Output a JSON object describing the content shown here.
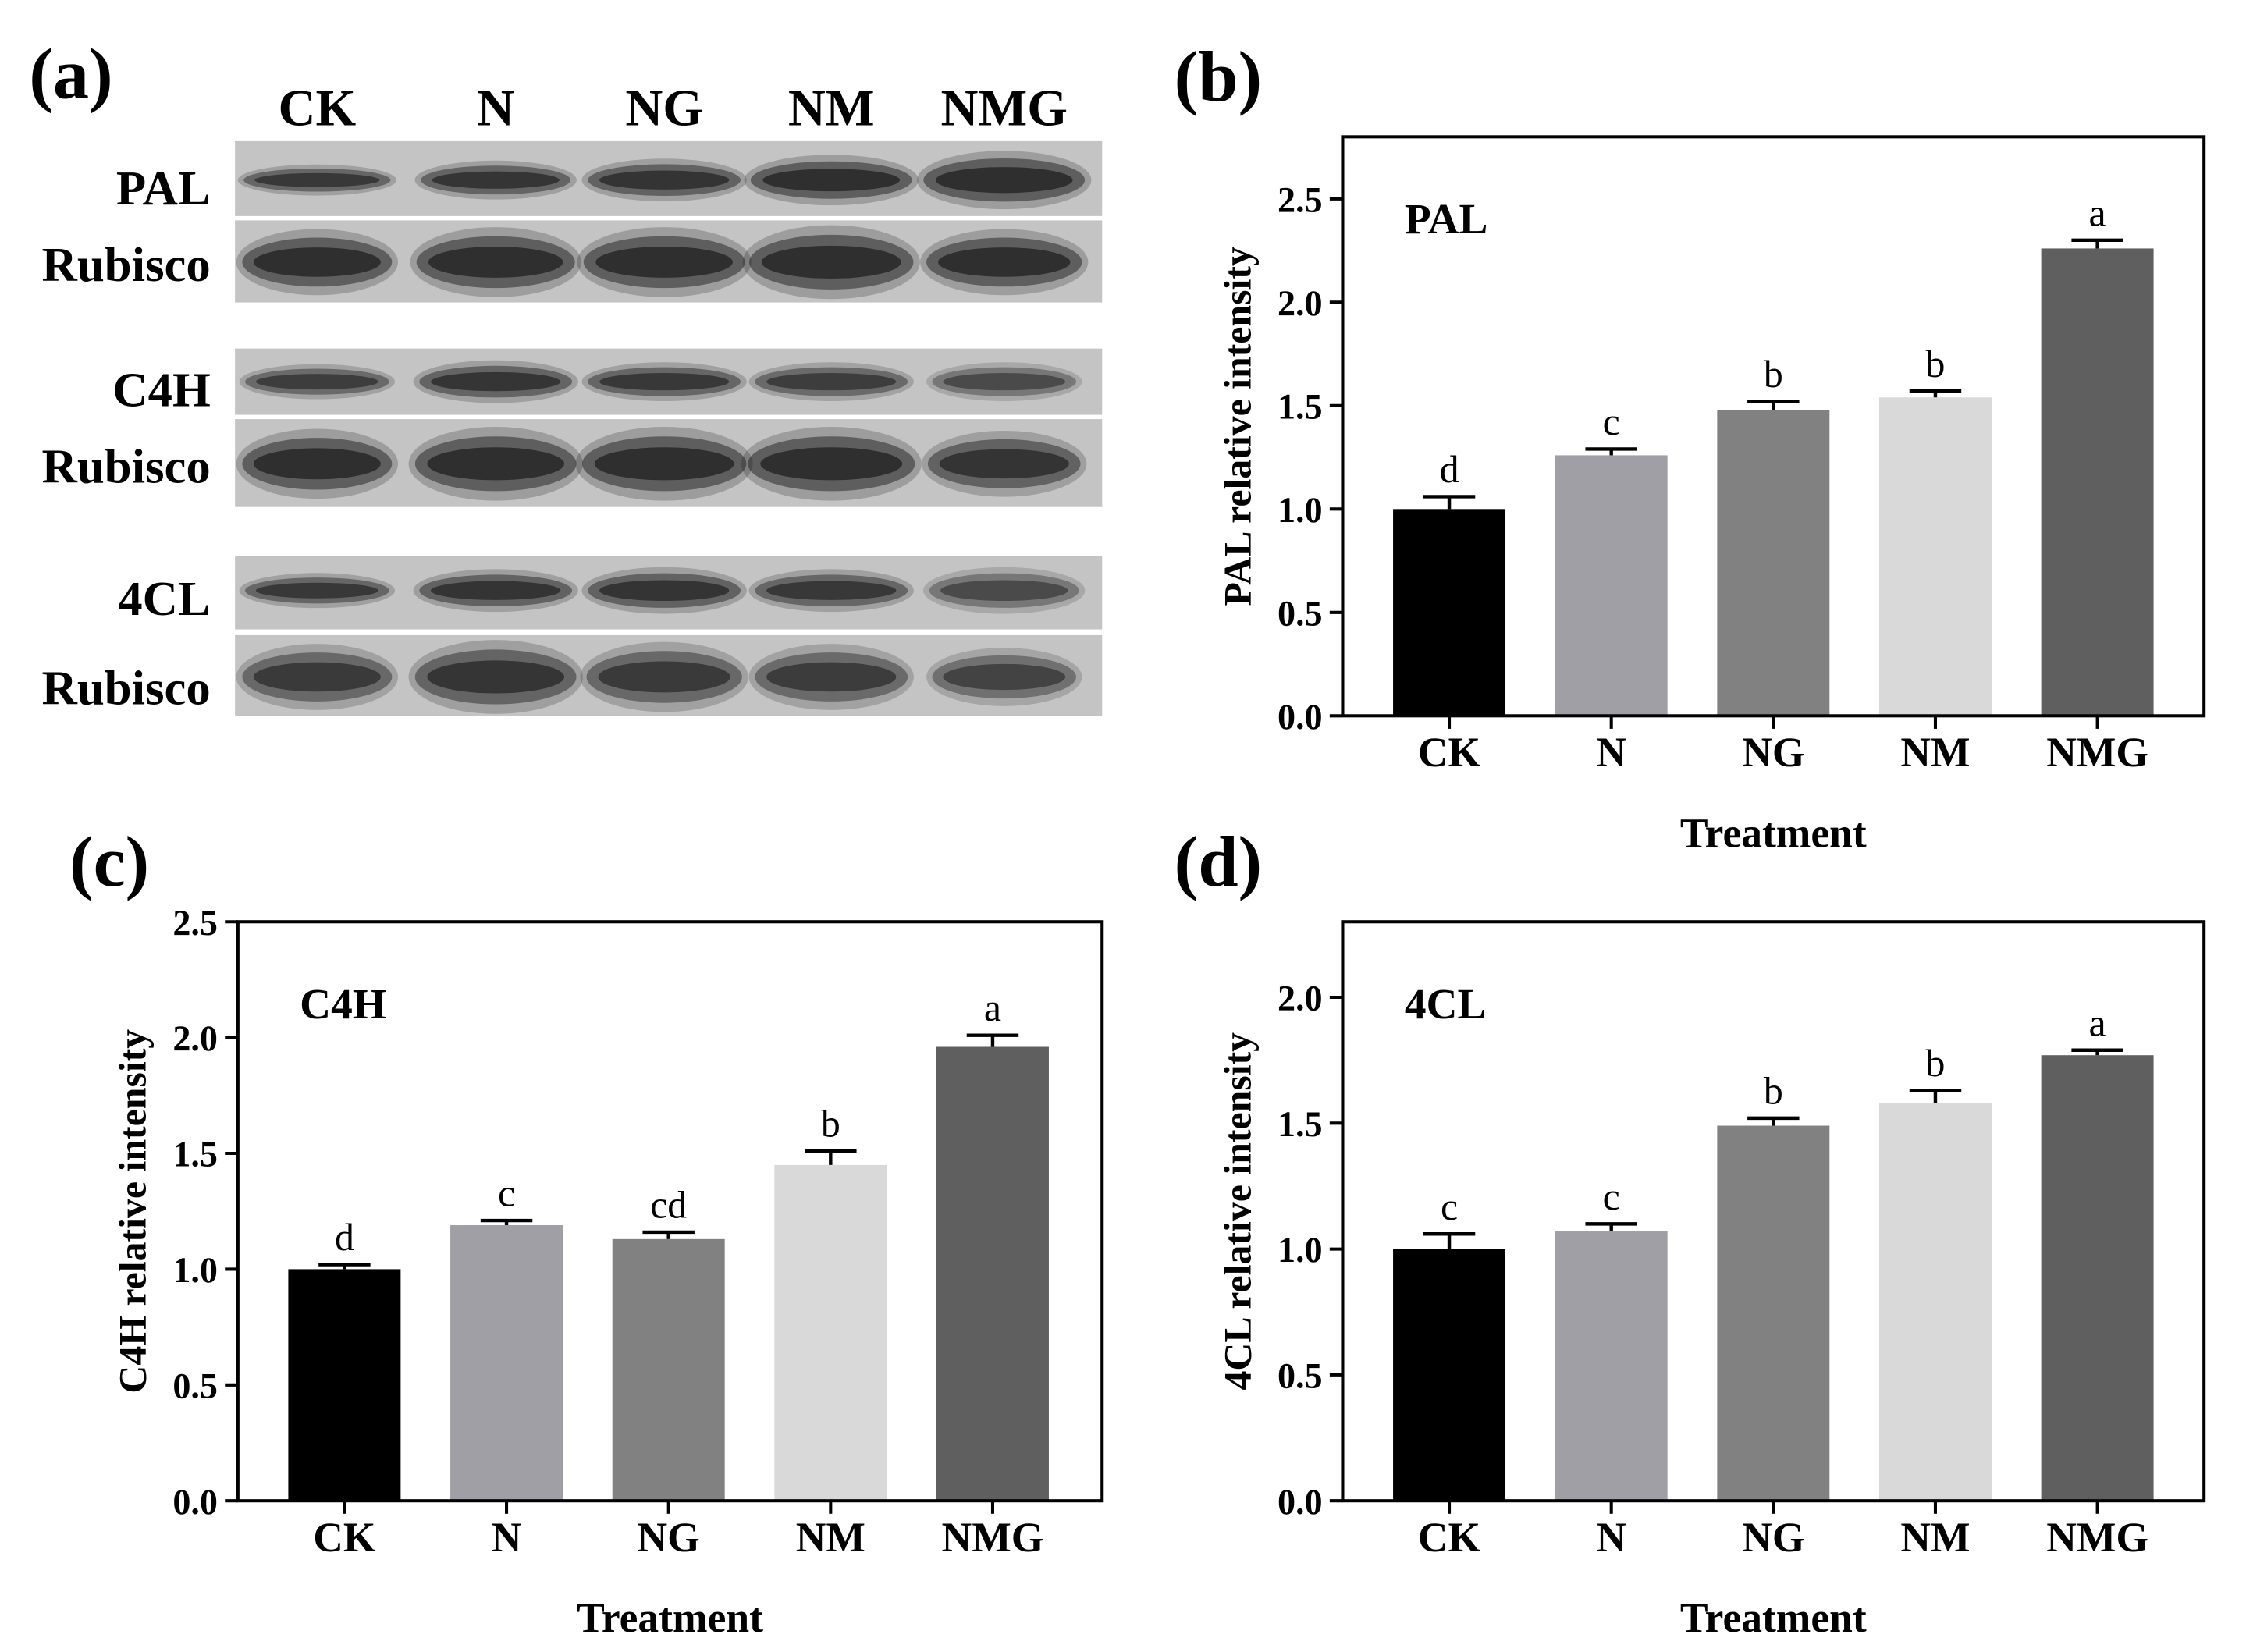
{
  "figure": {
    "panel_a": {
      "label": "(a)",
      "lanes": [
        "CK",
        "N",
        "NG",
        "NM",
        "NMG"
      ],
      "rows": [
        "PAL",
        "Rubisco",
        "C4H",
        "Rubisco",
        "4CL",
        "Rubisco"
      ]
    }
  },
  "colors": {
    "CK": "#000000",
    "N": "#a09fa5",
    "NG": "#818181",
    "NM": "#d9d9d9",
    "NMG": "#5f5f5f",
    "blot_background": "#c4c4c4",
    "blot_band": "#111111"
  },
  "chart_data": [
    {
      "panel_label": "(b)",
      "type": "bar",
      "title": "PAL",
      "categories": [
        "CK",
        "N",
        "NG",
        "NM",
        "NMG"
      ],
      "values": [
        1.0,
        1.26,
        1.48,
        1.54,
        2.26
      ],
      "errors": [
        0.06,
        0.03,
        0.04,
        0.03,
        0.04
      ],
      "letters": [
        "d",
        "c",
        "b",
        "b",
        "a"
      ],
      "xlabel": "Treatment",
      "ylabel": "PAL relative intensity",
      "ylim": [
        0,
        2.8
      ],
      "yticks": [
        "0.0",
        "0.5",
        "1.0",
        "1.5",
        "2.0",
        "2.5"
      ]
    },
    {
      "panel_label": "(c)",
      "type": "bar",
      "title": "C4H",
      "categories": [
        "CK",
        "N",
        "NG",
        "NM",
        "NMG"
      ],
      "values": [
        1.0,
        1.19,
        1.13,
        1.45,
        1.96
      ],
      "errors": [
        0.02,
        0.02,
        0.03,
        0.06,
        0.05
      ],
      "letters": [
        "d",
        "c",
        "cd",
        "b",
        "a"
      ],
      "xlabel": "Treatment",
      "ylabel": "C4H relative intensity",
      "ylim": [
        0,
        2.5
      ],
      "yticks": [
        "0.0",
        "0.5",
        "1.0",
        "1.5",
        "2.0",
        "2.5"
      ]
    },
    {
      "panel_label": "(d)",
      "type": "bar",
      "title": "4CL",
      "categories": [
        "CK",
        "N",
        "NG",
        "NM",
        "NMG"
      ],
      "values": [
        1.0,
        1.07,
        1.49,
        1.58,
        1.77
      ],
      "errors": [
        0.06,
        0.03,
        0.03,
        0.05,
        0.02
      ],
      "letters": [
        "c",
        "c",
        "b",
        "b",
        "a"
      ],
      "xlabel": "Treatment",
      "ylabel": "4CL relative intensity",
      "ylim": [
        0,
        2.3
      ],
      "yticks": [
        "0.0",
        "0.5",
        "1.0",
        "1.5",
        "2.0"
      ]
    }
  ]
}
